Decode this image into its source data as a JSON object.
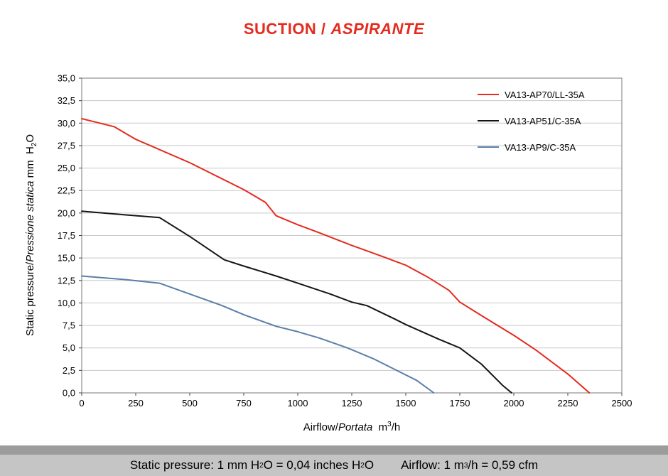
{
  "title": {
    "part1": "SUCTION /",
    "part2": "ASPIRANTE"
  },
  "colors": {
    "title_red": "#e42b1e",
    "grid": "#c9c9c9",
    "plot_border": "#7a7a7a",
    "footer_dark": "#9c9c9c",
    "footer_light": "#c5c5c5"
  },
  "chart_data": {
    "type": "line",
    "title": "SUCTION / ASPIRANTE",
    "xlabel": "Airflow/Portata m³/h",
    "ylabel": "Static pressure/Pressione statica mm H₂O",
    "xlim": [
      0,
      2500
    ],
    "ylim": [
      0,
      35
    ],
    "grid": "horizontal",
    "legend_position": "top-right-inside",
    "xticks": [
      0,
      250,
      500,
      750,
      1000,
      1250,
      1500,
      1750,
      2000,
      2250,
      2500
    ],
    "xtick_labels": [
      "0",
      "250",
      "500",
      "750",
      "1000",
      "1250",
      "1500",
      "1750",
      "2000",
      "2250",
      "2500"
    ],
    "yticks": [
      0,
      2.5,
      5,
      7.5,
      10,
      12.5,
      15,
      17.5,
      20,
      22.5,
      25,
      27.5,
      30,
      32.5,
      35
    ],
    "ytick_labels": [
      "0,0",
      "2,5",
      "5,0",
      "7,5",
      "10,0",
      "12,5",
      "15,0",
      "17,5",
      "20,0",
      "22,5",
      "25,0",
      "27,5",
      "30,0",
      "32,5",
      "35,0"
    ],
    "series": [
      {
        "name": "VA13-AP70/LL-35A",
        "color": "#e42b1e",
        "points": [
          [
            0,
            30.5
          ],
          [
            150,
            29.6
          ],
          [
            250,
            28.2
          ],
          [
            500,
            25.6
          ],
          [
            750,
            22.6
          ],
          [
            850,
            21.2
          ],
          [
            900,
            19.7
          ],
          [
            1000,
            18.7
          ],
          [
            1100,
            17.8
          ],
          [
            1250,
            16.4
          ],
          [
            1400,
            15.1
          ],
          [
            1500,
            14.2
          ],
          [
            1600,
            12.9
          ],
          [
            1700,
            11.4
          ],
          [
            1750,
            10.1
          ],
          [
            1850,
            8.6
          ],
          [
            2000,
            6.4
          ],
          [
            2100,
            4.8
          ],
          [
            2250,
            2.1
          ],
          [
            2350,
            0
          ]
        ]
      },
      {
        "name": "VA13-AP51/C-35A",
        "color": "#151515",
        "points": [
          [
            0,
            20.2
          ],
          [
            200,
            19.8
          ],
          [
            360,
            19.5
          ],
          [
            500,
            17.4
          ],
          [
            660,
            14.8
          ],
          [
            750,
            14.1
          ],
          [
            900,
            13.0
          ],
          [
            1000,
            12.2
          ],
          [
            1150,
            11.0
          ],
          [
            1250,
            10.1
          ],
          [
            1320,
            9.7
          ],
          [
            1450,
            8.2
          ],
          [
            1500,
            7.6
          ],
          [
            1650,
            6.0
          ],
          [
            1750,
            5.0
          ],
          [
            1850,
            3.2
          ],
          [
            1950,
            0.8
          ],
          [
            1990,
            0
          ]
        ]
      },
      {
        "name": "VA13-AP9/C-35A",
        "color": "#5a7ea8",
        "points": [
          [
            0,
            13.0
          ],
          [
            200,
            12.6
          ],
          [
            360,
            12.2
          ],
          [
            500,
            11.0
          ],
          [
            650,
            9.7
          ],
          [
            750,
            8.7
          ],
          [
            900,
            7.4
          ],
          [
            1000,
            6.8
          ],
          [
            1100,
            6.1
          ],
          [
            1230,
            5.0
          ],
          [
            1350,
            3.8
          ],
          [
            1450,
            2.6
          ],
          [
            1550,
            1.4
          ],
          [
            1630,
            0
          ]
        ]
      }
    ]
  },
  "ylabel_parts": {
    "pre": "Static pressure/",
    "italic": "Pressione statica",
    "unit_pre": " mm  H",
    "sub": "2",
    "post": "O"
  },
  "xlabel_parts": {
    "pre": "Airflow/",
    "italic": "Portata",
    "unit_pre": "  m",
    "sup": "3",
    "post": "/h"
  },
  "footer": {
    "p1": "Static pressure: 1 mm H",
    "sub1": "2",
    "p2": "O = 0,04 inches H",
    "sub2": "2",
    "p3": "O",
    "p4": "Airflow: 1 m",
    "sup": "3",
    "p5": "/h = 0,59 cfm"
  }
}
